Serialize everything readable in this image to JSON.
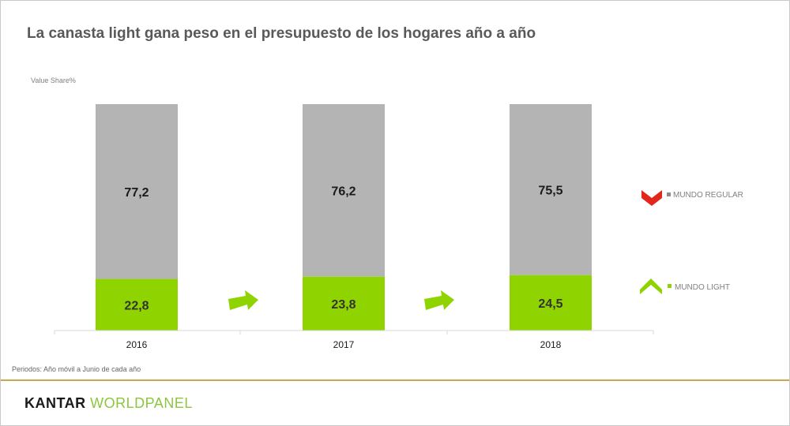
{
  "title": "La canasta light gana peso en el presupuesto de los hogares año a año",
  "footnote": "Periodos: Año móvil a Junio de cada año",
  "logo": {
    "part1": "KANTAR ",
    "part2": "WORLDPANEL"
  },
  "colors": {
    "regular": "#b4b4b4",
    "light": "#8fd400",
    "regular_chevron": "#e3261c",
    "light_chevron": "#8fd400"
  },
  "chart_data": {
    "type": "bar",
    "stacked": true,
    "ylabel": "Value Share%",
    "ylim": [
      0,
      100
    ],
    "categories": [
      "2016",
      "2017",
      "2018"
    ],
    "series": [
      {
        "name": "MUNDO LIGHT",
        "values": [
          22.8,
          23.8,
          24.5
        ],
        "labels": [
          "22,8",
          "23,8",
          "24,5"
        ]
      },
      {
        "name": "MUNDO REGULAR",
        "values": [
          77.2,
          76.2,
          75.5
        ],
        "labels": [
          "77,2",
          "76,2",
          "75,5"
        ]
      }
    ],
    "legend": [
      "MUNDO REGULAR",
      "MUNDO LIGHT"
    ],
    "legend_position": "right",
    "grid": false
  }
}
